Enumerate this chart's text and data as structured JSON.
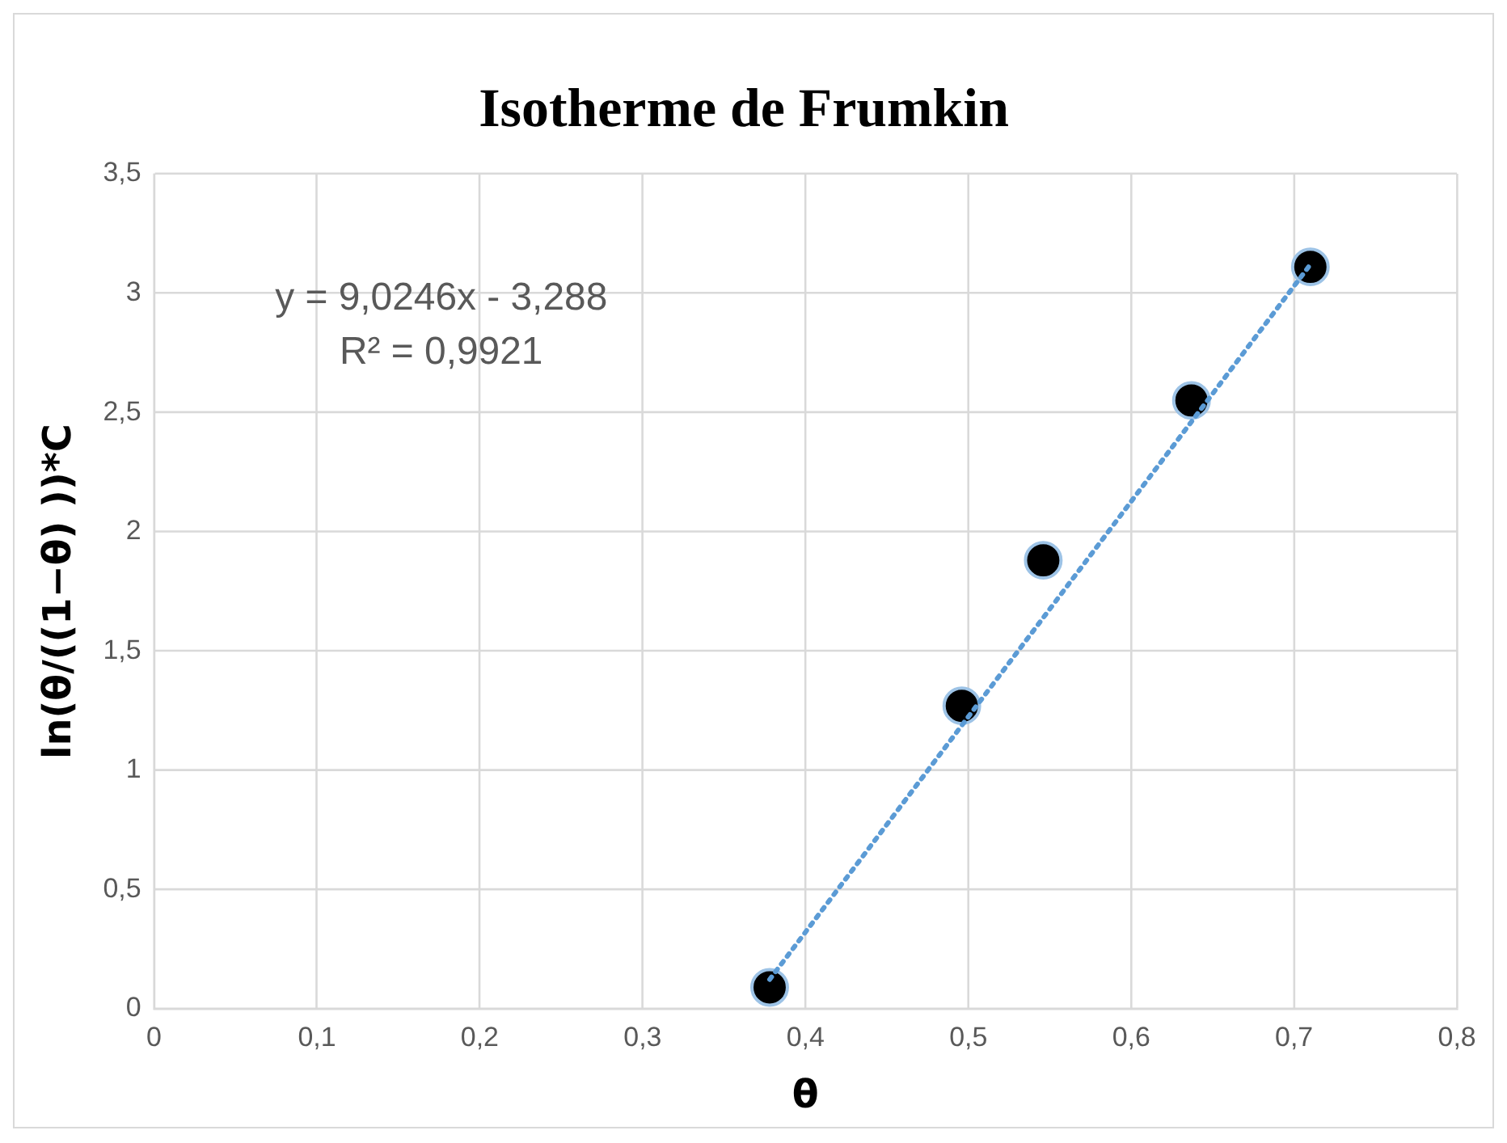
{
  "chart_data": {
    "type": "scatter",
    "title": "Isotherme de Frumkin",
    "xlabel": "θ",
    "ylabel": "ln(θ/((1−θ) ))*C",
    "annotations": [
      "y = 9,0246x - 3,288",
      "R² = 0,9921"
    ],
    "xlim": [
      0,
      0.8
    ],
    "ylim": [
      0,
      3.5
    ],
    "xticks": [
      0,
      {
        "value": 0.1,
        "label": "0,1"
      },
      {
        "value": 0.2,
        "label": "0,2"
      },
      {
        "value": 0.3,
        "label": "0,3"
      },
      {
        "value": 0.4,
        "label": "0,4"
      },
      {
        "value": 0.5,
        "label": "0,5"
      },
      {
        "value": 0.6,
        "label": "0,6"
      },
      {
        "value": 0.7,
        "label": "0,7"
      },
      {
        "value": 0.8,
        "label": "0,8"
      }
    ],
    "yticks": [
      0,
      {
        "value": 0.5,
        "label": "0,5"
      },
      1,
      {
        "value": 1.5,
        "label": "1,5"
      },
      2,
      {
        "value": 2.5,
        "label": "2,5"
      },
      3,
      {
        "value": 3.5,
        "label": "3,5"
      }
    ],
    "grid": true,
    "legend": false,
    "series": [
      {
        "type": "scatter",
        "color": "#000000",
        "marker": "circle",
        "x": [
          0.378,
          0.496,
          0.546,
          0.637,
          0.71
        ],
        "values": [
          0.09,
          1.27,
          1.88,
          2.55,
          3.11
        ]
      },
      {
        "type": "line",
        "color": "#5b9bd5",
        "marker": "none",
        "line_style": "dotted",
        "x": [
          0.378,
          0.71
        ],
        "values": [
          0.123,
          3.12
        ]
      }
    ]
  }
}
